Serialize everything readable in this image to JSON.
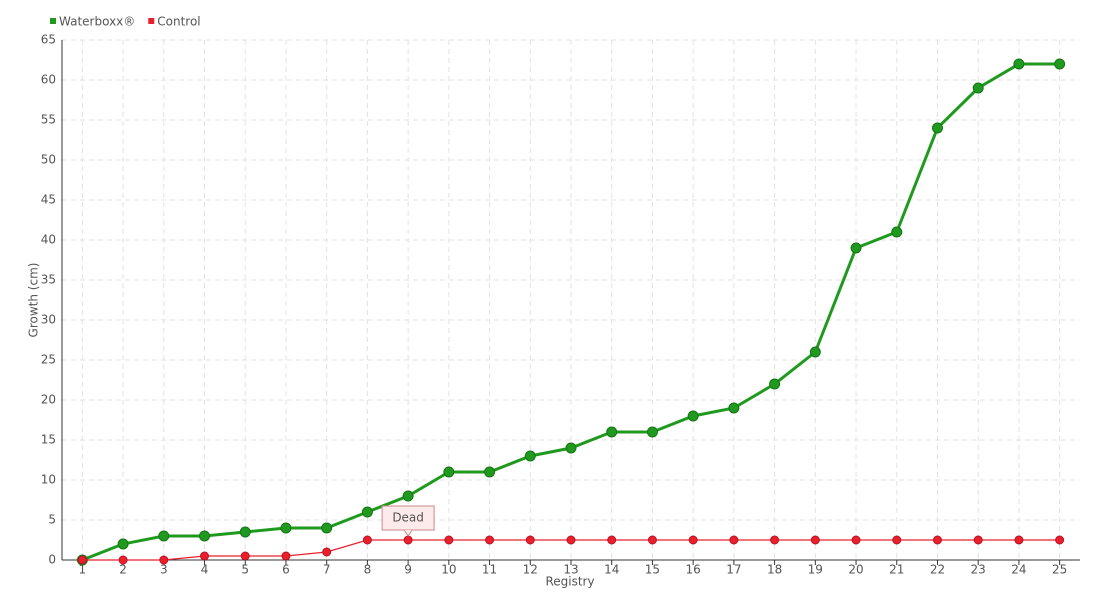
{
  "chart_data": {
    "type": "line",
    "xlabel": "Registry",
    "ylabel": "Growth (cm)",
    "categories": [
      "1",
      "2",
      "3",
      "4",
      "5",
      "6",
      "7",
      "8",
      "9",
      "10",
      "11",
      "12",
      "13",
      "14",
      "15",
      "16",
      "17",
      "18",
      "19",
      "20",
      "21",
      "22",
      "23",
      "24",
      "25"
    ],
    "series": [
      {
        "name": "Waterboxx®",
        "color": "#1f9a1f",
        "values": [
          0,
          2,
          3,
          3,
          3.5,
          4,
          4,
          6,
          8,
          11,
          11,
          13,
          14,
          16,
          16,
          18,
          19,
          22,
          26,
          39,
          41,
          54,
          59,
          62,
          62
        ]
      },
      {
        "name": "Control",
        "color": "#e8202e",
        "values": [
          0,
          0,
          0,
          0.5,
          0.5,
          0.5,
          1,
          2.5,
          2.5,
          2.5,
          2.5,
          2.5,
          2.5,
          2.5,
          2.5,
          2.5,
          2.5,
          2.5,
          2.5,
          2.5,
          2.5,
          2.5,
          2.5,
          2.5,
          2.5
        ]
      }
    ],
    "annotations": [
      {
        "text": "Dead",
        "category": "9",
        "y": 2.5
      }
    ],
    "ylim": [
      0,
      65
    ],
    "yticks": [
      0,
      5,
      10,
      15,
      20,
      25,
      30,
      35,
      40,
      45,
      50,
      55,
      60,
      65
    ],
    "grid": true,
    "legend": "top-left"
  }
}
